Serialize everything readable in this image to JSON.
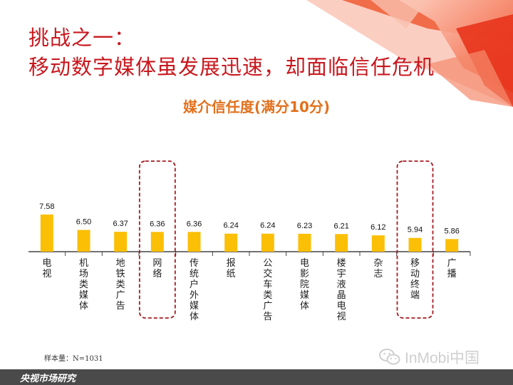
{
  "slide": {
    "title_line1": "挑战之一：",
    "title_line2": "移动数字媒体虽发展迅速，却面临信任危机",
    "sample_note": "样本量：N=1031",
    "footer_text": "央视市场研究",
    "watermark_text": "InMobi中国",
    "watermark_icon": "wechat-icon"
  },
  "colors": {
    "title": "#c8181e",
    "chart_title": "#e2711d",
    "bar": "#fbbf06",
    "highlight_box": "#a51c22",
    "footer_bg": "#4a4a4a",
    "decoration": "#ef4a23"
  },
  "chart_data": {
    "type": "bar",
    "title": "媒介信任度(满分10分)",
    "categories": [
      "电视",
      "机场类媒体",
      "地铁类广告",
      "网络",
      "传统户外媒体",
      "报纸",
      "公交车类广告",
      "电影院媒体",
      "楼宇液晶电视",
      "杂志",
      "移动终端",
      "广播"
    ],
    "values": [
      7.58,
      6.5,
      6.37,
      6.36,
      6.36,
      6.24,
      6.24,
      6.23,
      6.21,
      6.12,
      5.94,
      5.86
    ],
    "value_labels": [
      "7.58",
      "6.50",
      "6.37",
      "6.36",
      "6.36",
      "6.24",
      "6.24",
      "6.23",
      "6.21",
      "6.12",
      "5.94",
      "5.86"
    ],
    "highlighted": [
      "网络",
      "移动终端"
    ],
    "xlabel": "",
    "ylabel": "",
    "grid": false,
    "legend": "none"
  }
}
